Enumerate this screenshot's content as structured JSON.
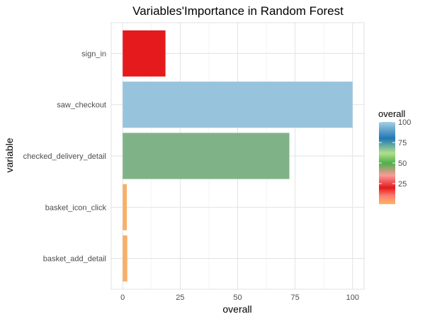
{
  "chart_data": {
    "type": "bar",
    "orientation": "horizontal",
    "title": "Variables'Importance in Random Forest",
    "xlabel": "overall",
    "ylabel": "variable",
    "xlim": [
      0,
      100
    ],
    "xticks": [
      0,
      25,
      50,
      75,
      100
    ],
    "grid": true,
    "categories": [
      "sign_in",
      "saw_checkout",
      "checked_delivery_detail",
      "basket_icon_click",
      "basket_add_detail"
    ],
    "values": [
      18.6,
      100,
      72.5,
      1.8,
      2.0
    ],
    "bar_colors": [
      "#e41a1c",
      "#97c3dd",
      "#80b287",
      "#f8b06a",
      "#f8b06a"
    ],
    "legend": {
      "title": "overall",
      "placement": "right",
      "ticks": [
        25,
        50,
        75,
        100
      ],
      "gradient_stops": [
        {
          "value": 0,
          "color": "#fdb462"
        },
        {
          "value": 10,
          "color": "#fb8072"
        },
        {
          "value": 20,
          "color": "#e41a1c"
        },
        {
          "value": 35,
          "color": "#fb9a99"
        },
        {
          "value": 50,
          "color": "#4daf4a"
        },
        {
          "value": 62,
          "color": "#b2df8a"
        },
        {
          "value": 80,
          "color": "#1f78b4"
        },
        {
          "value": 100,
          "color": "#a6cee3"
        }
      ]
    }
  }
}
